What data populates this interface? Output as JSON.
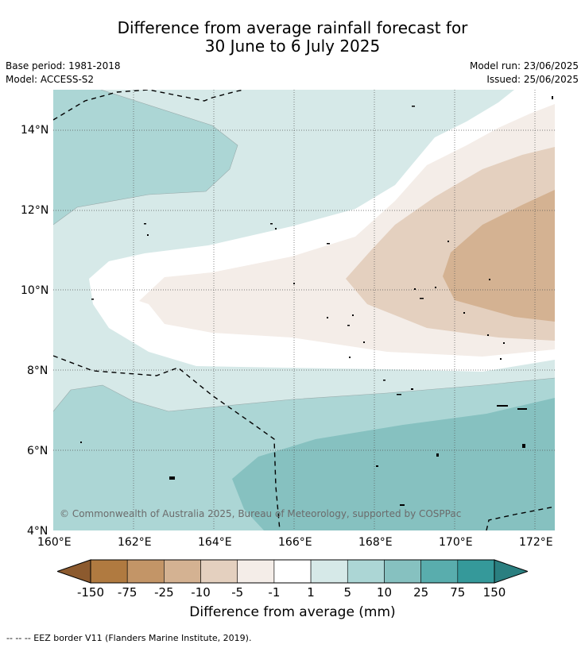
{
  "header": {
    "title_line1": "Difference from average rainfall forecast for",
    "title_line2": "30 June to 6 July 2025",
    "base_period": "Base period: 1981-2018",
    "model": "Model: ACCESS-S2",
    "model_run": "Model run: 23/06/2025",
    "issued": "Issued: 25/06/2025"
  },
  "map": {
    "lat_labels": [
      "14°N",
      "12°N",
      "10°N",
      "8°N",
      "6°N",
      "4°N"
    ],
    "lon_labels": [
      "160°E",
      "162°E",
      "164°E",
      "166°E",
      "168°E",
      "170°E",
      "172°E"
    ],
    "copyright": "© Commonwealth of Australia 2025, Bureau of Meteorology, supported by COSPPac"
  },
  "colorbar": {
    "labels": [
      "-150",
      "-75",
      "-25",
      "-10",
      "-5",
      "-1",
      "1",
      "5",
      "10",
      "25",
      "75",
      "150"
    ],
    "colors": [
      "#8c5a2e",
      "#b07a40",
      "#c39567",
      "#d4b292",
      "#e4d0bf",
      "#f4ede8",
      "#ffffff",
      "#d6e9e8",
      "#acd6d5",
      "#86c1c0",
      "#59adad",
      "#35999a",
      "#2a7f80"
    ],
    "title": "Difference from average (mm)"
  },
  "footnote": "--  --  -- EEZ border V11 (Flanders Marine Institute, 2019)."
}
